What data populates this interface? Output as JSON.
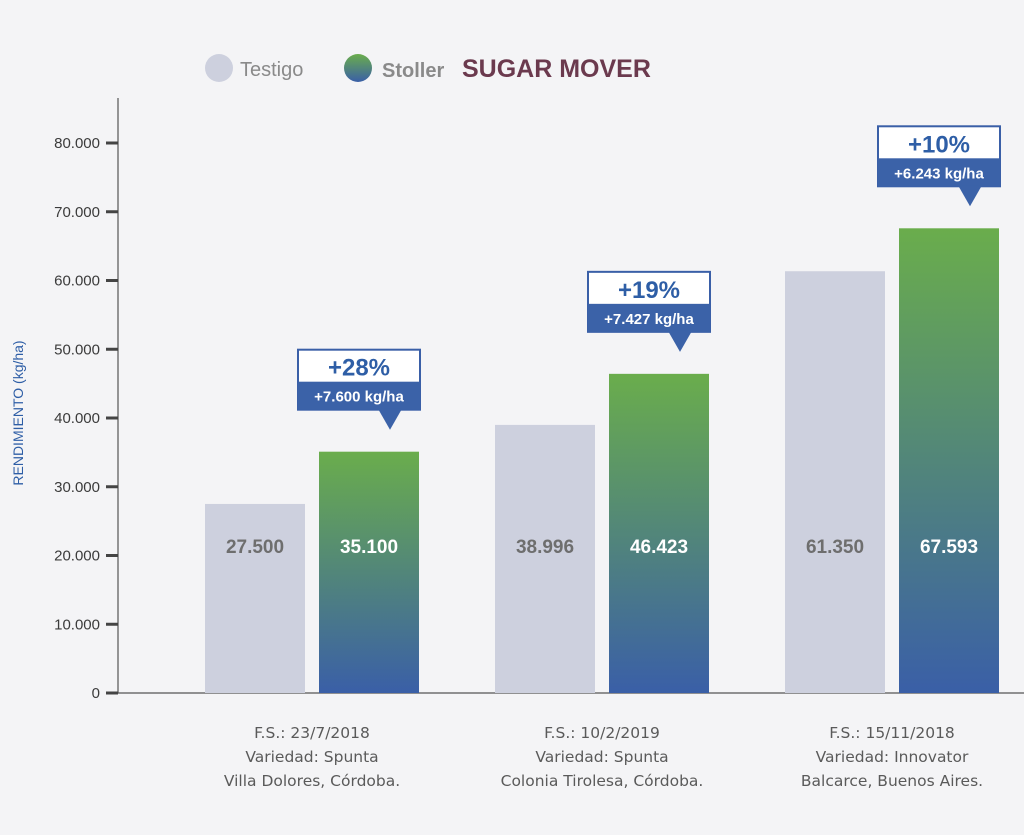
{
  "legend": {
    "control_label": "Testigo",
    "treatment_brand": "Stoller",
    "treatment_product": "SUGAR MOVER"
  },
  "colors": {
    "control": "#cdd0de",
    "treatment_top": "#6aad4c",
    "treatment_bottom": "#3a5fa7",
    "axis_label": "#2e5ea6",
    "callout_border": "#3a5fa7",
    "callout_fill": "#3b62a8",
    "value_control": "#6e6e6e",
    "value_treatment": "#ffffff",
    "product_text": "#6b3a4e"
  },
  "chart_data": {
    "type": "bar",
    "ylabel": "RENDIMIENTO (kg/ha)",
    "ylim": [
      0,
      80000
    ],
    "yticks": [
      0,
      10000,
      20000,
      30000,
      40000,
      50000,
      60000,
      70000,
      80000
    ],
    "ytick_labels": [
      "0",
      "10.000",
      "20.000",
      "30.000",
      "40.000",
      "50.000",
      "60.000",
      "70.000",
      "80.000"
    ],
    "legend_position": "top",
    "grid": false,
    "categories": [
      [
        "F.S.: 23/7/2018",
        "Variedad: Spunta",
        "Villa Dolores, Córdoba."
      ],
      [
        "F.S.: 10/2/2019",
        "Variedad: Spunta",
        "Colonia Tirolesa, Córdoba."
      ],
      [
        "F.S.: 15/11/2018",
        "Variedad: Innovator",
        "Balcarce, Buenos Aires."
      ]
    ],
    "series": [
      {
        "name": "Testigo",
        "values": [
          27500,
          38996,
          61350
        ],
        "labels": [
          "27.500",
          "38.996",
          "61.350"
        ]
      },
      {
        "name": "Stoller SUGAR MOVER",
        "values": [
          35100,
          46423,
          67593
        ],
        "labels": [
          "35.100",
          "46.423",
          "67.593"
        ]
      }
    ],
    "annotations": [
      {
        "pct": "+28%",
        "abs": "+7.600 kg/ha"
      },
      {
        "pct": "+19%",
        "abs": "+7.427 kg/ha"
      },
      {
        "pct": "+10%",
        "abs": "+6.243 kg/ha"
      }
    ]
  }
}
